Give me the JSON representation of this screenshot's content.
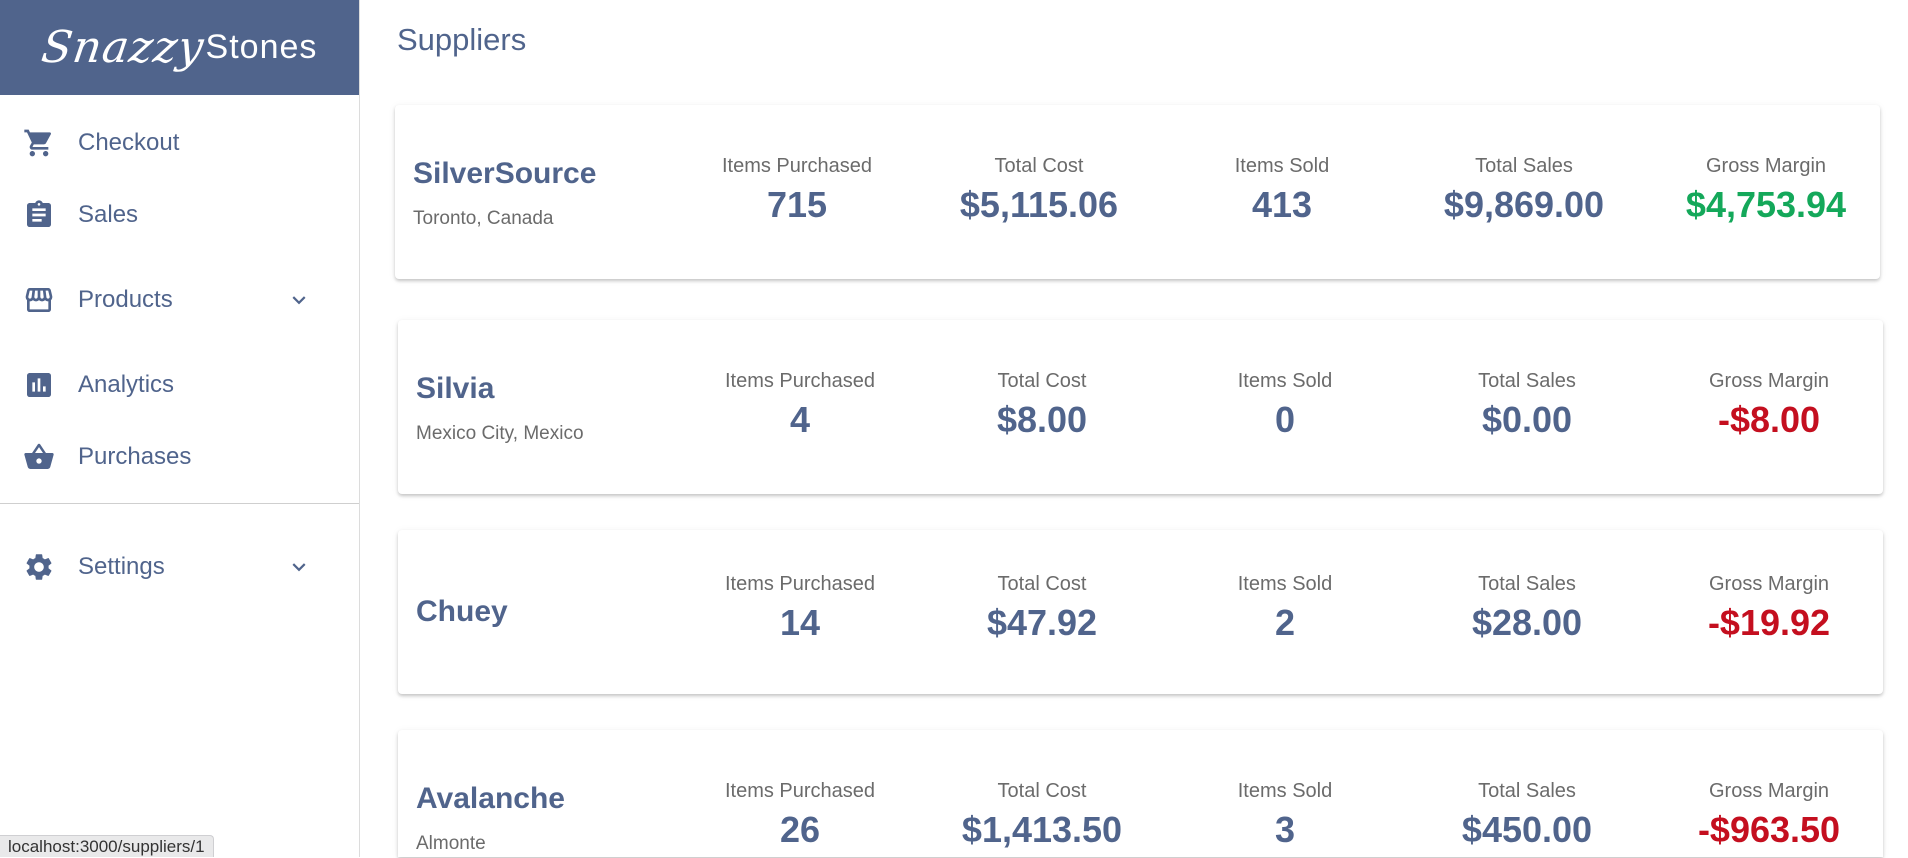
{
  "brand": {
    "script": "Snazzy",
    "plain": "Stones"
  },
  "nav": {
    "items": [
      {
        "label": "Checkout",
        "icon": "cart-icon"
      },
      {
        "label": "Sales",
        "icon": "clipboard-icon"
      },
      {
        "label": "Products",
        "icon": "storefront-icon",
        "expandable": true
      },
      {
        "label": "Analytics",
        "icon": "bar-chart-icon"
      },
      {
        "label": "Purchases",
        "icon": "basket-icon"
      },
      {
        "label": "Settings",
        "icon": "gear-icon",
        "expandable": true
      }
    ]
  },
  "page": {
    "title": "Suppliers"
  },
  "stat_labels": {
    "items_purchased": "Items Purchased",
    "total_cost": "Total Cost",
    "items_sold": "Items Sold",
    "total_sales": "Total Sales",
    "gross_margin": "Gross Margin"
  },
  "suppliers": [
    {
      "name": "SilverSource",
      "location": "Toronto, Canada",
      "items_purchased": "715",
      "total_cost": "$5,115.06",
      "items_sold": "413",
      "total_sales": "$9,869.00",
      "gross_margin": "$4,753.94"
    },
    {
      "name": "Silvia",
      "location": "Mexico City, Mexico",
      "items_purchased": "4",
      "total_cost": "$8.00",
      "items_sold": "0",
      "total_sales": "$0.00",
      "gross_margin": "-$8.00"
    },
    {
      "name": "Chuey",
      "location": "",
      "items_purchased": "14",
      "total_cost": "$47.92",
      "items_sold": "2",
      "total_sales": "$28.00",
      "gross_margin": "-$19.92"
    },
    {
      "name": "Avalanche",
      "location": "Almonte",
      "items_purchased": "26",
      "total_cost": "$1,413.50",
      "items_sold": "3",
      "total_sales": "$450.00",
      "gross_margin": "-$963.50"
    }
  ],
  "colors": {
    "brand": "#50648c",
    "positive": "#14a85a",
    "negative": "#c40f1f",
    "muted_text": "#6b6b6b"
  },
  "status_bar": {
    "url": "localhost:3000/suppliers/1"
  }
}
